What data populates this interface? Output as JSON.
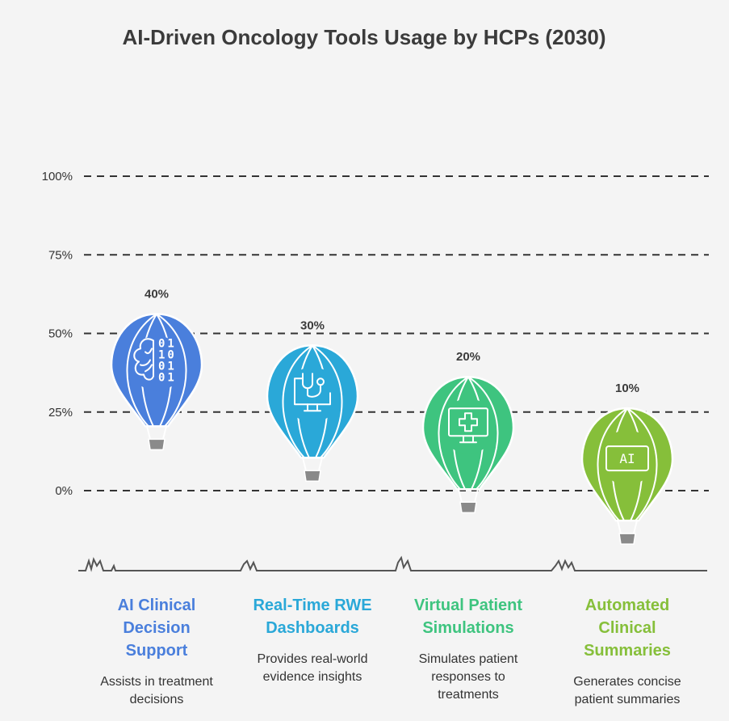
{
  "chart_data": {
    "type": "bar",
    "title": "AI-Driven Oncology Tools Usage by HCPs (2030)",
    "y_ticks": [
      "100%",
      "75%",
      "50%",
      "25%",
      "0%"
    ],
    "ylim": [
      0,
      100
    ],
    "grid": true,
    "categories": [
      "AI Clinical Decision Support",
      "Real-Time RWE Dashboards",
      "Virtual Patient Simulations",
      "Automated Clinical Summaries"
    ],
    "values": [
      40,
      30,
      20,
      10
    ],
    "value_labels": [
      "40%",
      "30%",
      "20%",
      "10%"
    ]
  },
  "items": [
    {
      "name": "AI Clinical Decision Support",
      "description": "Assists in treatment decisions",
      "color": "#4a7fdc",
      "icon": "brain-binary-icon"
    },
    {
      "name": "Real-Time RWE Dashboards",
      "description": "Provides real-world evidence insights",
      "color": "#2aa8d8",
      "icon": "monitor-stethoscope-icon"
    },
    {
      "name": "Virtual Patient Simulations",
      "description": "Simulates patient responses to treatments",
      "color": "#3ec47f",
      "icon": "monitor-medical-cross-icon"
    },
    {
      "name": "Automated Clinical Summaries",
      "description": "Generates concise patient summaries",
      "color": "#86bf3a",
      "icon": "ai-chip-icon"
    }
  ]
}
